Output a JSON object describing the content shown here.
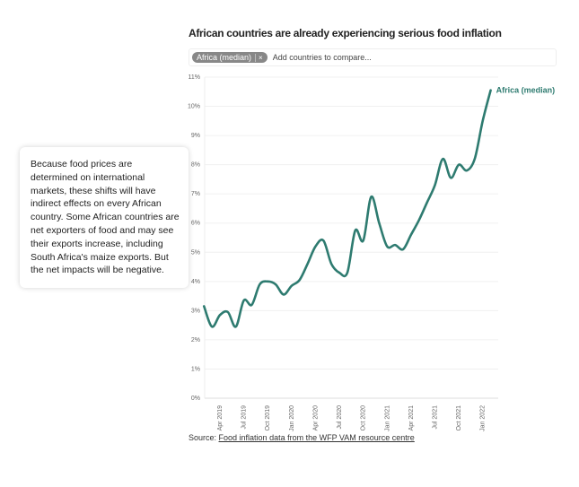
{
  "header": {
    "title": "African countries are already experiencing serious food inflation"
  },
  "filter": {
    "chip_label": "Africa (median)",
    "chip_remove": "×",
    "placeholder": "Add countries to compare..."
  },
  "callout": {
    "text": "Because food prices are determined on international markets, these shifts will have indirect effects on every African country. Some African countries are net exporters of food and may see their exports increase, including South Africa's maize exports. But the net impacts will be negative."
  },
  "source": {
    "prefix": "Source: ",
    "link": "Food inflation data from the WFP VAM resource centre"
  },
  "chart_data": {
    "type": "line",
    "ylim": [
      0,
      11
    ],
    "yticks": [
      "0%",
      "1%",
      "2%",
      "3%",
      "4%",
      "5%",
      "6%",
      "7%",
      "8%",
      "9%",
      "10%",
      "11%"
    ],
    "xticks": [
      "Apr 2019",
      "Jul 2019",
      "Oct 2019",
      "Jan 2020",
      "Apr 2020",
      "Jul 2020",
      "Oct 2020",
      "Jan 2021",
      "Apr 2021",
      "Jul 2021",
      "Oct 2021",
      "Jan 2022"
    ],
    "grid": true,
    "color": "#2e7b70",
    "series": [
      {
        "name": "Africa (median)",
        "x": [
          "2019-02",
          "2019-03",
          "2019-04",
          "2019-05",
          "2019-06",
          "2019-07",
          "2019-08",
          "2019-09",
          "2019-10",
          "2019-11",
          "2019-12",
          "2020-01",
          "2020-02",
          "2020-03",
          "2020-04",
          "2020-05",
          "2020-06",
          "2020-07",
          "2020-08",
          "2020-09",
          "2020-10",
          "2020-11",
          "2020-12",
          "2021-01",
          "2021-02",
          "2021-03",
          "2021-04",
          "2021-05",
          "2021-06",
          "2021-07",
          "2021-08",
          "2021-09",
          "2021-10",
          "2021-11",
          "2021-12",
          "2022-01",
          "2022-02"
        ],
        "values": [
          3.15,
          2.45,
          2.85,
          2.95,
          2.45,
          3.35,
          3.2,
          3.9,
          4.0,
          3.9,
          3.55,
          3.85,
          4.05,
          4.6,
          5.2,
          5.4,
          4.6,
          4.3,
          4.3,
          5.75,
          5.4,
          6.9,
          6.0,
          5.2,
          5.25,
          5.1,
          5.6,
          6.1,
          6.7,
          7.3,
          8.2,
          7.55,
          8.0,
          7.8,
          8.2,
          9.5,
          10.55
        ]
      }
    ]
  }
}
